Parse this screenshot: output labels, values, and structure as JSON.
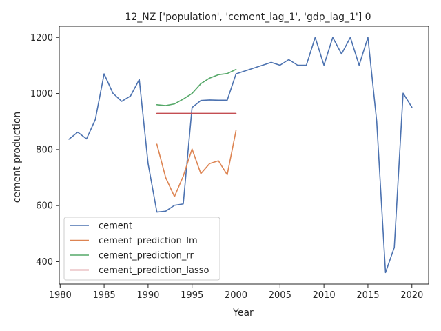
{
  "chart_data": {
    "type": "line",
    "title": "12_NZ ['population', 'cement_lag_1', 'gdp_lag_1'] 0",
    "xlabel": "Year",
    "ylabel": "cement production",
    "xlim": [
      1979.9,
      2021.9
    ],
    "ylim": [
      320,
      1240
    ],
    "xticks": [
      1980,
      1985,
      1990,
      1995,
      2000,
      2005,
      2010,
      2015,
      2020
    ],
    "yticks": [
      400,
      600,
      800,
      1000,
      1200
    ],
    "grid": false,
    "legend_position": "lower-left",
    "series": [
      {
        "name": "cement",
        "color": "#4c72b0",
        "x": [
          1981,
          1982,
          1983,
          1984,
          1985,
          1986,
          1987,
          1988,
          1989,
          1990,
          1991,
          1992,
          1993,
          1994,
          1995,
          1996,
          1997,
          1998,
          1999,
          2000,
          2004,
          2005,
          2006,
          2007,
          2008,
          2009,
          2010,
          2011,
          2012,
          2013,
          2014,
          2015,
          2016,
          2017,
          2018,
          2019,
          2020
        ],
        "y": [
          837,
          862,
          838,
          907,
          1070,
          1001,
          972,
          991,
          1050,
          750,
          577,
          580,
          601,
          606,
          950,
          975,
          977,
          976,
          976,
          1070,
          1111,
          1101,
          1121,
          1101,
          1101,
          1200,
          1101,
          1200,
          1141,
          1200,
          1101,
          1200,
          900,
          361,
          451,
          1001,
          951
        ]
      },
      {
        "name": "cement_prediction_lm",
        "color": "#dd8452",
        "x": [
          1991,
          1992,
          1993,
          1994,
          1995,
          1996,
          1997,
          1998,
          1999,
          2000
        ],
        "y": [
          819,
          700,
          632,
          705,
          802,
          714,
          750,
          760,
          710,
          868
        ]
      },
      {
        "name": "cement_prediction_rr",
        "color": "#55a868",
        "x": [
          1991,
          1992,
          1993,
          1994,
          1995,
          1996,
          1997,
          1998,
          1999,
          2000
        ],
        "y": [
          960,
          957,
          963,
          980,
          1000,
          1035,
          1055,
          1067,
          1071,
          1086
        ]
      },
      {
        "name": "cement_prediction_lasso",
        "color": "#c44e52",
        "x": [
          1991,
          1992,
          1993,
          1994,
          1995,
          1996,
          1997,
          1998,
          1999,
          2000
        ],
        "y": [
          929,
          929,
          929,
          929,
          929,
          929,
          929,
          929,
          929,
          929
        ]
      }
    ]
  }
}
